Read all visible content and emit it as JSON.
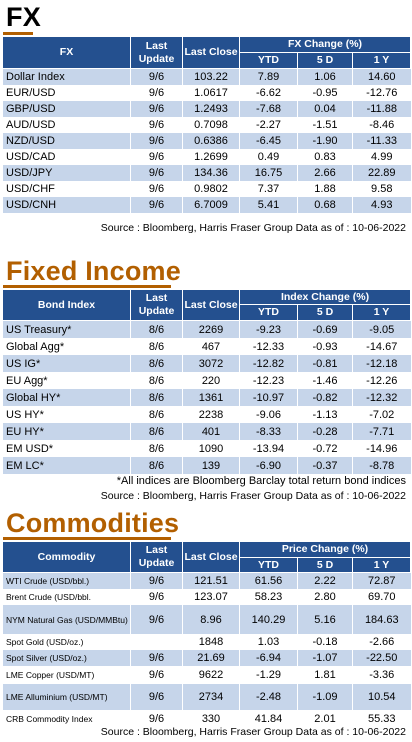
{
  "fx": {
    "title": "FX",
    "headers": {
      "name": "FX",
      "last_update": "Last Update",
      "last_close": "Last Close",
      "change_group": "FX Change (%)",
      "ytd": "YTD",
      "d5": "5 D",
      "y1": "1 Y"
    },
    "rows": [
      {
        "name": "Dollar Index",
        "update": "9/6",
        "close": "103.22",
        "ytd": "7.89",
        "d5": "1.06",
        "y1": "14.60"
      },
      {
        "name": "EUR/USD",
        "update": "9/6",
        "close": "1.0617",
        "ytd": "-6.62",
        "d5": "-0.95",
        "y1": "-12.76"
      },
      {
        "name": "GBP/USD",
        "update": "9/6",
        "close": "1.2493",
        "ytd": "-7.68",
        "d5": "0.04",
        "y1": "-11.88"
      },
      {
        "name": "AUD/USD",
        "update": "9/6",
        "close": "0.7098",
        "ytd": "-2.27",
        "d5": "-1.51",
        "y1": "-8.46"
      },
      {
        "name": "NZD/USD",
        "update": "9/6",
        "close": "0.6386",
        "ytd": "-6.45",
        "d5": "-1.90",
        "y1": "-11.33"
      },
      {
        "name": "USD/CAD",
        "update": "9/6",
        "close": "1.2699",
        "ytd": "0.49",
        "d5": "0.83",
        "y1": "4.99"
      },
      {
        "name": "USD/JPY",
        "update": "9/6",
        "close": "134.36",
        "ytd": "16.75",
        "d5": "2.66",
        "y1": "22.89"
      },
      {
        "name": "USD/CHF",
        "update": "9/6",
        "close": "0.9802",
        "ytd": "7.37",
        "d5": "1.88",
        "y1": "9.58"
      },
      {
        "name": "USD/CNH",
        "update": "9/6",
        "close": "6.7009",
        "ytd": "5.41",
        "d5": "0.68",
        "y1": "4.93"
      }
    ],
    "source": "Source : Bloomberg, Harris Fraser Group Data as of : 10-06-2022"
  },
  "fixed_income": {
    "title": "Fixed Income",
    "headers": {
      "name": "Bond Index",
      "last_update": "Last Update",
      "last_close": "Last Close",
      "change_group": "Index Change (%)",
      "ytd": "YTD",
      "d5": "5 D",
      "y1": "1 Y"
    },
    "rows": [
      {
        "name": "US Treasury*",
        "update": "8/6",
        "close": "2269",
        "ytd": "-9.23",
        "d5": "-0.69",
        "y1": "-9.05"
      },
      {
        "name": "Global Agg*",
        "update": "8/6",
        "close": "467",
        "ytd": "-12.33",
        "d5": "-0.93",
        "y1": "-14.67"
      },
      {
        "name": "US IG*",
        "update": "8/6",
        "close": "3072",
        "ytd": "-12.82",
        "d5": "-0.81",
        "y1": "-12.18"
      },
      {
        "name": "EU Agg*",
        "update": "8/6",
        "close": "220",
        "ytd": "-12.23",
        "d5": "-1.46",
        "y1": "-12.26"
      },
      {
        "name": "Global HY*",
        "update": "8/6",
        "close": "1361",
        "ytd": "-10.97",
        "d5": "-0.82",
        "y1": "-12.32"
      },
      {
        "name": "US HY*",
        "update": "8/6",
        "close": "2238",
        "ytd": "-9.06",
        "d5": "-1.13",
        "y1": "-7.02"
      },
      {
        "name": "EU HY*",
        "update": "8/6",
        "close": "401",
        "ytd": "-8.33",
        "d5": "-0.28",
        "y1": "-7.71"
      },
      {
        "name": "EM USD*",
        "update": "8/6",
        "close": "1090",
        "ytd": "-13.94",
        "d5": "-0.72",
        "y1": "-14.96"
      },
      {
        "name": "EM LC*",
        "update": "8/6",
        "close": "139",
        "ytd": "-6.90",
        "d5": "-0.37",
        "y1": "-8.78"
      }
    ],
    "note": "*All indices are Bloomberg Barclay total return bond indices",
    "source": "Source : Bloomberg, Harris Fraser Group Data as of : 10-06-2022"
  },
  "commodities": {
    "title": "Commodities",
    "headers": {
      "name": "Commodity",
      "last_update": "Last Update",
      "last_close": "Last Close",
      "change_group": "Price Change (%)",
      "ytd": "YTD",
      "d5": "5 D",
      "y1": "1 Y"
    },
    "rows": [
      {
        "name": "WTI Crude (USD/bbl.)",
        "update": "9/6",
        "close": "121.51",
        "ytd": "61.56",
        "d5": "2.22",
        "y1": "72.87"
      },
      {
        "name": "Brent Crude (USD/bbl.",
        "update": "9/6",
        "close": "123.07",
        "ytd": "58.23",
        "d5": "2.80",
        "y1": "69.70"
      },
      {
        "name": "NYM Natural Gas (USD/MMBtu)",
        "update": "9/6",
        "close": "8.96",
        "ytd": "140.29",
        "d5": "5.16",
        "y1": "184.63"
      },
      {
        "name": "Spot Gold (USD/oz.)",
        "update": "",
        "close": "1848",
        "ytd": "1.03",
        "d5": "-0.18",
        "y1": "-2.66"
      },
      {
        "name": "Spot Silver (USD/oz.)",
        "update": "9/6",
        "close": "21.69",
        "ytd": "-6.94",
        "d5": "-1.07",
        "y1": "-22.50"
      },
      {
        "name": "LME Copper (USD/MT)",
        "update": "9/6",
        "close": "9622",
        "ytd": "-1.29",
        "d5": "1.81",
        "y1": "-3.36"
      },
      {
        "name": "LME Alluminium (USD/MT)",
        "update": "9/6",
        "close": "2734",
        "ytd": "-2.48",
        "d5": "-1.09",
        "y1": "10.54"
      },
      {
        "name": "CRB Commodity Index",
        "update": "9/6",
        "close": "330",
        "ytd": "41.84",
        "d5": "2.01",
        "y1": "55.33"
      }
    ],
    "source": "Source : Bloomberg, Harris Fraser Group Data as of : 10-06-2022"
  },
  "colors": {
    "header_bg": "#24508f",
    "stripe": "#c6d5ea",
    "title_accent": "#b25f00"
  }
}
